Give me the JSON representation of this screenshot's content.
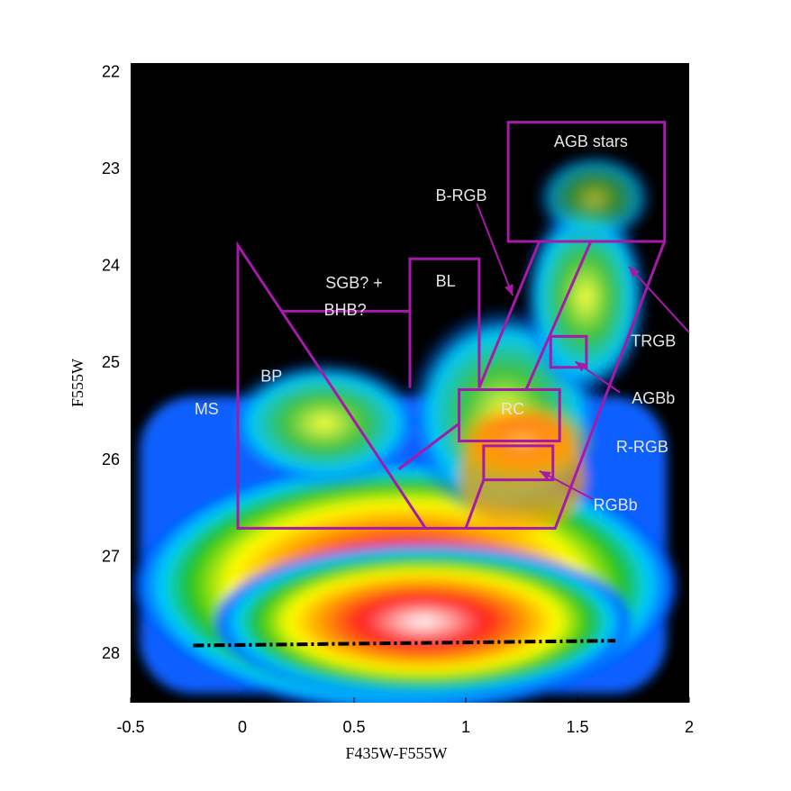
{
  "chart_data": {
    "type": "hess-diagram",
    "x_label": "F435W-F555W",
    "y_label": "F555W",
    "xlim": [
      -0.5,
      2
    ],
    "ylim": [
      21.9,
      28.5
    ],
    "y_inverted": true,
    "xticks": [
      -0.5,
      0,
      0.5,
      1,
      1.5,
      2
    ],
    "yticks": [
      22,
      23,
      24,
      25,
      26,
      27,
      28
    ],
    "region_color": "#a51aa8",
    "regions": [
      {
        "points": [
          [
            1.19,
            22.51
          ],
          [
            1.89,
            22.51
          ],
          [
            1.89,
            23.74
          ],
          [
            1.19,
            23.74
          ]
        ],
        "closed": true
      },
      {
        "points": [
          [
            -0.02,
            23.78
          ],
          [
            -0.02,
            26.7
          ],
          [
            0.82,
            26.7
          ]
        ],
        "closed": true
      },
      {
        "points": [
          [
            0.75,
            25.25
          ],
          [
            0.75,
            23.92
          ],
          [
            1.06,
            23.92
          ],
          [
            1.06,
            25.25
          ]
        ],
        "closed": false
      },
      {
        "points": [
          [
            0.18,
            24.46
          ],
          [
            0.75,
            24.46
          ]
        ],
        "closed": false
      },
      {
        "points": [
          [
            0.97,
            25.27
          ],
          [
            1.42,
            25.27
          ],
          [
            1.42,
            25.8
          ],
          [
            0.97,
            25.8
          ]
        ],
        "closed": true
      },
      {
        "points": [
          [
            1.08,
            25.85
          ],
          [
            1.39,
            25.85
          ],
          [
            1.39,
            26.2
          ],
          [
            1.08,
            26.2
          ]
        ],
        "closed": true
      },
      {
        "points": [
          [
            1.38,
            24.72
          ],
          [
            1.54,
            24.72
          ],
          [
            1.54,
            25.04
          ],
          [
            1.38,
            25.04
          ]
        ],
        "closed": true
      },
      {
        "points": [
          [
            0.82,
            26.7
          ],
          [
            1.4,
            26.7
          ],
          [
            1.89,
            23.74
          ]
        ],
        "closed": false
      },
      {
        "points": [
          [
            1.0,
            26.7
          ],
          [
            1.08,
            26.2
          ]
        ],
        "closed": false
      },
      {
        "points": [
          [
            1.33,
            23.74
          ],
          [
            1.06,
            25.25
          ]
        ],
        "closed": false
      },
      {
        "points": [
          [
            1.56,
            23.74
          ],
          [
            1.27,
            25.27
          ]
        ],
        "closed": false
      },
      {
        "points": [
          [
            0.7,
            26.09
          ],
          [
            0.97,
            25.62
          ]
        ],
        "closed": false
      }
    ],
    "arrows": [
      {
        "from": [
          1.05,
          23.35
        ],
        "to": [
          1.21,
          24.3
        ]
      },
      {
        "from": [
          2.0,
          24.68
        ],
        "to": [
          1.73,
          24.0
        ]
      },
      {
        "from": [
          1.69,
          25.3
        ],
        "to": [
          1.49,
          24.98
        ]
      },
      {
        "from": [
          1.57,
          26.4
        ],
        "to": [
          1.33,
          26.11
        ]
      }
    ],
    "completeness_line": {
      "x": [
        -0.22,
        1.67
      ],
      "y": [
        27.91,
        27.86
      ]
    },
    "annotations": [
      {
        "text": "AGB stars",
        "x": 1.56,
        "y": 22.72
      },
      {
        "text": "B-RGB",
        "x": 0.98,
        "y": 23.28
      },
      {
        "text": "SGB? +",
        "x": 0.5,
        "y": 24.18
      },
      {
        "text": "BHB?",
        "x": 0.46,
        "y": 24.46
      },
      {
        "text": "BL",
        "x": 0.91,
        "y": 24.16
      },
      {
        "text": "BP",
        "x": 0.13,
        "y": 25.14
      },
      {
        "text": "MS",
        "x": -0.16,
        "y": 25.48
      },
      {
        "text": "RC",
        "x": 1.21,
        "y": 25.48
      },
      {
        "text": "TRGB",
        "x": 1.84,
        "y": 24.78
      },
      {
        "text": "AGBb",
        "x": 1.84,
        "y": 25.37
      },
      {
        "text": "R-RGB",
        "x": 1.79,
        "y": 25.87
      },
      {
        "text": "RGBb",
        "x": 1.67,
        "y": 26.47
      }
    ]
  }
}
